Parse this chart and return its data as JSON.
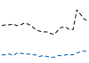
{
  "years": [
    2000,
    2001,
    2002,
    2003,
    2004,
    2005,
    2006,
    2007,
    2008,
    2009,
    2010,
    2011,
    2012,
    2013,
    2014,
    2015,
    2016,
    2017,
    2018,
    2019,
    2020,
    2021,
    2022,
    2023
  ],
  "us_values": [
    5.5,
    5.6,
    5.6,
    5.7,
    5.5,
    5.6,
    5.8,
    5.7,
    5.4,
    5.0,
    4.8,
    4.7,
    4.7,
    4.5,
    4.4,
    4.9,
    5.3,
    5.3,
    5.0,
    5.0,
    7.5,
    6.9,
    6.3,
    6.1
  ],
  "canada_values": [
    1.8,
    1.8,
    1.9,
    1.7,
    2.0,
    2.0,
    1.9,
    1.9,
    1.8,
    1.8,
    1.6,
    1.7,
    1.6,
    1.5,
    1.5,
    1.7,
    1.7,
    1.8,
    1.8,
    1.8,
    2.0,
    2.2,
    2.3,
    2.1
  ],
  "us_color": "#222222",
  "canada_color": "#1a6bb5",
  "background_color": "#ffffff",
  "ylim": [
    1.0,
    8.5
  ],
  "xlim": [
    2000,
    2023
  ]
}
